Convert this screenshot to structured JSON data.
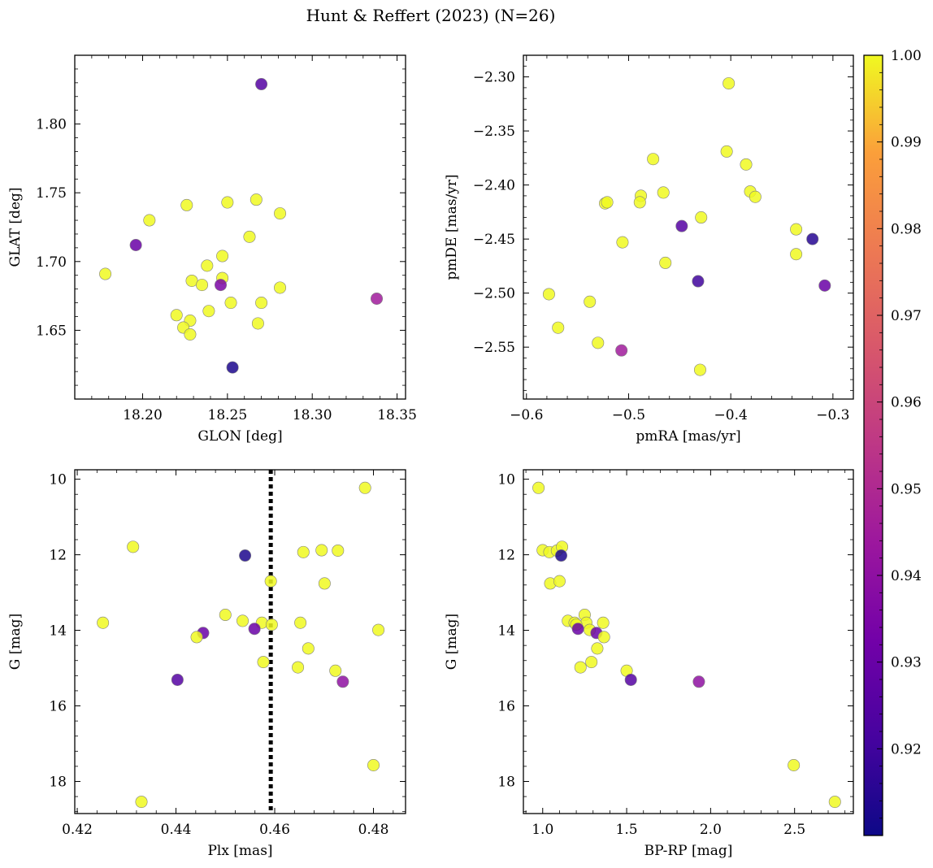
{
  "title": "Hunt & Reffert (2023) (N=26)",
  "colors": {
    "colormap": "plasma",
    "point_edge": "#808080",
    "vline": "#000000"
  },
  "colorbar": {
    "range": [
      0.91,
      1.0
    ],
    "ticks": [
      0.92,
      0.93,
      0.94,
      0.95,
      0.96,
      0.97,
      0.98,
      0.99,
      1.0
    ],
    "tick_labels": [
      "0.92",
      "0.93",
      "0.94",
      "0.95",
      "0.96",
      "0.97",
      "0.98",
      "0.99",
      "1.00"
    ]
  },
  "chart_data": [
    {
      "type": "scatter",
      "xlabel": "GLON [deg]",
      "ylabel": "GLAT [deg]",
      "xlim": [
        18.16,
        18.355
      ],
      "ylim": [
        1.6,
        1.85
      ],
      "xticks": [
        18.2,
        18.25,
        18.3,
        18.35
      ],
      "xtick_labels": [
        "18.20",
        "18.25",
        "18.30",
        "18.35"
      ],
      "yticks": [
        1.65,
        1.7,
        1.75,
        1.8
      ],
      "ytick_labels": [
        "1.65",
        "1.70",
        "1.75",
        "1.80"
      ],
      "points": [
        {
          "x": 18.27,
          "y": 1.829,
          "c": 0.925
        },
        {
          "x": 18.178,
          "y": 1.691,
          "c": 1.0
        },
        {
          "x": 18.196,
          "y": 1.712,
          "c": 0.93
        },
        {
          "x": 18.204,
          "y": 1.73,
          "c": 1.0
        },
        {
          "x": 18.226,
          "y": 1.741,
          "c": 1.0
        },
        {
          "x": 18.25,
          "y": 1.743,
          "c": 1.0
        },
        {
          "x": 18.267,
          "y": 1.745,
          "c": 1.0
        },
        {
          "x": 18.281,
          "y": 1.735,
          "c": 1.0
        },
        {
          "x": 18.263,
          "y": 1.718,
          "c": 1.0
        },
        {
          "x": 18.247,
          "y": 1.704,
          "c": 1.0
        },
        {
          "x": 18.238,
          "y": 1.697,
          "c": 1.0
        },
        {
          "x": 18.247,
          "y": 1.688,
          "c": 1.0
        },
        {
          "x": 18.229,
          "y": 1.686,
          "c": 1.0
        },
        {
          "x": 18.235,
          "y": 1.683,
          "c": 1.0
        },
        {
          "x": 18.246,
          "y": 1.683,
          "c": 0.935
        },
        {
          "x": 18.281,
          "y": 1.681,
          "c": 1.0
        },
        {
          "x": 18.252,
          "y": 1.67,
          "c": 1.0
        },
        {
          "x": 18.27,
          "y": 1.67,
          "c": 1.0
        },
        {
          "x": 18.239,
          "y": 1.664,
          "c": 1.0
        },
        {
          "x": 18.22,
          "y": 1.661,
          "c": 1.0
        },
        {
          "x": 18.228,
          "y": 1.657,
          "c": 1.0
        },
        {
          "x": 18.268,
          "y": 1.655,
          "c": 1.0
        },
        {
          "x": 18.224,
          "y": 1.652,
          "c": 1.0
        },
        {
          "x": 18.228,
          "y": 1.647,
          "c": 1.0
        },
        {
          "x": 18.338,
          "y": 1.673,
          "c": 0.945
        },
        {
          "x": 18.253,
          "y": 1.623,
          "c": 0.913
        }
      ]
    },
    {
      "type": "scatter",
      "xlabel": "pmRA [mas/yr]",
      "ylabel": "pmDE [mas/yr]",
      "xlim": [
        -0.603,
        -0.28
      ],
      "ylim": [
        -2.598,
        -2.28
      ],
      "xticks": [
        -0.6,
        -0.5,
        -0.4,
        -0.3
      ],
      "xtick_labels": [
        "−0.6",
        "−0.5",
        "−0.4",
        "−0.3"
      ],
      "yticks": [
        -2.55,
        -2.5,
        -2.45,
        -2.4,
        -2.35,
        -2.3
      ],
      "ytick_labels": [
        "−2.55",
        "−2.50",
        "−2.45",
        "−2.40",
        "−2.35",
        "−2.30"
      ],
      "points": [
        {
          "x": -0.402,
          "y": -2.306,
          "c": 1.0
        },
        {
          "x": -0.404,
          "y": -2.369,
          "c": 1.0
        },
        {
          "x": -0.476,
          "y": -2.376,
          "c": 1.0
        },
        {
          "x": -0.385,
          "y": -2.381,
          "c": 1.0
        },
        {
          "x": -0.523,
          "y": -2.417,
          "c": 1.0
        },
        {
          "x": -0.521,
          "y": -2.416,
          "c": 1.0
        },
        {
          "x": -0.488,
          "y": -2.41,
          "c": 1.0
        },
        {
          "x": -0.489,
          "y": -2.416,
          "c": 1.0
        },
        {
          "x": -0.466,
          "y": -2.407,
          "c": 1.0
        },
        {
          "x": -0.381,
          "y": -2.406,
          "c": 1.0
        },
        {
          "x": -0.376,
          "y": -2.411,
          "c": 1.0
        },
        {
          "x": -0.448,
          "y": -2.438,
          "c": 0.925
        },
        {
          "x": -0.429,
          "y": -2.43,
          "c": 1.0
        },
        {
          "x": -0.336,
          "y": -2.441,
          "c": 1.0
        },
        {
          "x": -0.32,
          "y": -2.45,
          "c": 0.915
        },
        {
          "x": -0.506,
          "y": -2.453,
          "c": 1.0
        },
        {
          "x": -0.336,
          "y": -2.464,
          "c": 1.0
        },
        {
          "x": -0.464,
          "y": -2.472,
          "c": 1.0
        },
        {
          "x": -0.432,
          "y": -2.489,
          "c": 0.92
        },
        {
          "x": -0.308,
          "y": -2.493,
          "c": 0.93
        },
        {
          "x": -0.578,
          "y": -2.501,
          "c": 1.0
        },
        {
          "x": -0.538,
          "y": -2.508,
          "c": 1.0
        },
        {
          "x": -0.569,
          "y": -2.532,
          "c": 1.0
        },
        {
          "x": -0.53,
          "y": -2.546,
          "c": 1.0
        },
        {
          "x": -0.507,
          "y": -2.553,
          "c": 0.945
        },
        {
          "x": -0.43,
          "y": -2.571,
          "c": 1.0
        }
      ]
    },
    {
      "type": "scatter",
      "xlabel": "Plx [mas]",
      "ylabel": "G [mag]",
      "xlim": [
        0.4195,
        0.4865
      ],
      "ylim": [
        18.85,
        9.75
      ],
      "y_inverted": true,
      "xticks": [
        0.42,
        0.44,
        0.46,
        0.48
      ],
      "xtick_labels": [
        "0.42",
        "0.44",
        "0.46",
        "0.48"
      ],
      "yticks": [
        10,
        12,
        14,
        16,
        18
      ],
      "ytick_labels": [
        "10",
        "12",
        "14",
        "16",
        "18"
      ],
      "vline": {
        "x": 0.4592,
        "style": "dotted"
      },
      "points": [
        {
          "x": 0.4783,
          "y": 10.23,
          "c": 1.0
        },
        {
          "x": 0.4313,
          "y": 11.79,
          "c": 1.0
        },
        {
          "x": 0.454,
          "y": 12.02,
          "c": 0.913
        },
        {
          "x": 0.4658,
          "y": 11.93,
          "c": 1.0
        },
        {
          "x": 0.4695,
          "y": 11.88,
          "c": 1.0
        },
        {
          "x": 0.4728,
          "y": 11.89,
          "c": 1.0
        },
        {
          "x": 0.4592,
          "y": 12.7,
          "c": 1.0
        },
        {
          "x": 0.4701,
          "y": 12.76,
          "c": 1.0
        },
        {
          "x": 0.45,
          "y": 13.59,
          "c": 1.0
        },
        {
          "x": 0.4535,
          "y": 13.75,
          "c": 1.0
        },
        {
          "x": 0.4252,
          "y": 13.8,
          "c": 1.0
        },
        {
          "x": 0.4574,
          "y": 13.8,
          "c": 1.0
        },
        {
          "x": 0.4594,
          "y": 13.85,
          "c": 1.0
        },
        {
          "x": 0.4652,
          "y": 13.8,
          "c": 1.0
        },
        {
          "x": 0.4559,
          "y": 13.96,
          "c": 0.93
        },
        {
          "x": 0.481,
          "y": 13.99,
          "c": 1.0
        },
        {
          "x": 0.4455,
          "y": 14.07,
          "c": 0.93
        },
        {
          "x": 0.4442,
          "y": 14.18,
          "c": 1.0
        },
        {
          "x": 0.4668,
          "y": 14.48,
          "c": 1.0
        },
        {
          "x": 0.4577,
          "y": 14.84,
          "c": 1.0
        },
        {
          "x": 0.4647,
          "y": 14.98,
          "c": 1.0
        },
        {
          "x": 0.4723,
          "y": 15.07,
          "c": 1.0
        },
        {
          "x": 0.4403,
          "y": 15.31,
          "c": 0.925
        },
        {
          "x": 0.4738,
          "y": 15.36,
          "c": 0.94
        },
        {
          "x": 0.48,
          "y": 17.57,
          "c": 1.0
        },
        {
          "x": 0.433,
          "y": 18.54,
          "c": 1.0
        }
      ]
    },
    {
      "type": "scatter",
      "xlabel": "BP-RP [mag]",
      "ylabel": "G [mag]",
      "xlim": [
        0.885,
        2.85
      ],
      "ylim": [
        18.85,
        9.75
      ],
      "y_inverted": true,
      "xticks": [
        1.0,
        1.5,
        2.0,
        2.5
      ],
      "xtick_labels": [
        "1.0",
        "1.5",
        "2.0",
        "2.5"
      ],
      "yticks": [
        10,
        12,
        14,
        16,
        18
      ],
      "ytick_labels": [
        "10",
        "12",
        "14",
        "16",
        "18"
      ],
      "points": [
        {
          "x": 0.975,
          "y": 10.23,
          "c": 1.0
        },
        {
          "x": 1.0,
          "y": 11.88,
          "c": 1.0
        },
        {
          "x": 1.04,
          "y": 11.93,
          "c": 1.0
        },
        {
          "x": 1.085,
          "y": 11.89,
          "c": 1.0
        },
        {
          "x": 1.115,
          "y": 11.79,
          "c": 1.0
        },
        {
          "x": 1.11,
          "y": 12.02,
          "c": 0.913
        },
        {
          "x": 1.045,
          "y": 12.76,
          "c": 1.0
        },
        {
          "x": 1.1,
          "y": 12.7,
          "c": 1.0
        },
        {
          "x": 1.25,
          "y": 13.59,
          "c": 1.0
        },
        {
          "x": 1.15,
          "y": 13.75,
          "c": 1.0
        },
        {
          "x": 1.19,
          "y": 13.8,
          "c": 1.0
        },
        {
          "x": 1.26,
          "y": 13.8,
          "c": 1.0
        },
        {
          "x": 1.36,
          "y": 13.8,
          "c": 1.0
        },
        {
          "x": 1.2,
          "y": 13.85,
          "c": 1.0
        },
        {
          "x": 1.21,
          "y": 13.96,
          "c": 0.93
        },
        {
          "x": 1.28,
          "y": 13.99,
          "c": 1.0
        },
        {
          "x": 1.32,
          "y": 14.07,
          "c": 0.93
        },
        {
          "x": 1.365,
          "y": 14.18,
          "c": 1.0
        },
        {
          "x": 1.325,
          "y": 14.48,
          "c": 1.0
        },
        {
          "x": 1.29,
          "y": 14.84,
          "c": 1.0
        },
        {
          "x": 1.225,
          "y": 14.98,
          "c": 1.0
        },
        {
          "x": 1.5,
          "y": 15.07,
          "c": 1.0
        },
        {
          "x": 1.525,
          "y": 15.31,
          "c": 0.925
        },
        {
          "x": 1.93,
          "y": 15.36,
          "c": 0.94
        },
        {
          "x": 2.495,
          "y": 17.57,
          "c": 1.0
        },
        {
          "x": 2.74,
          "y": 18.54,
          "c": 1.0
        }
      ]
    }
  ]
}
